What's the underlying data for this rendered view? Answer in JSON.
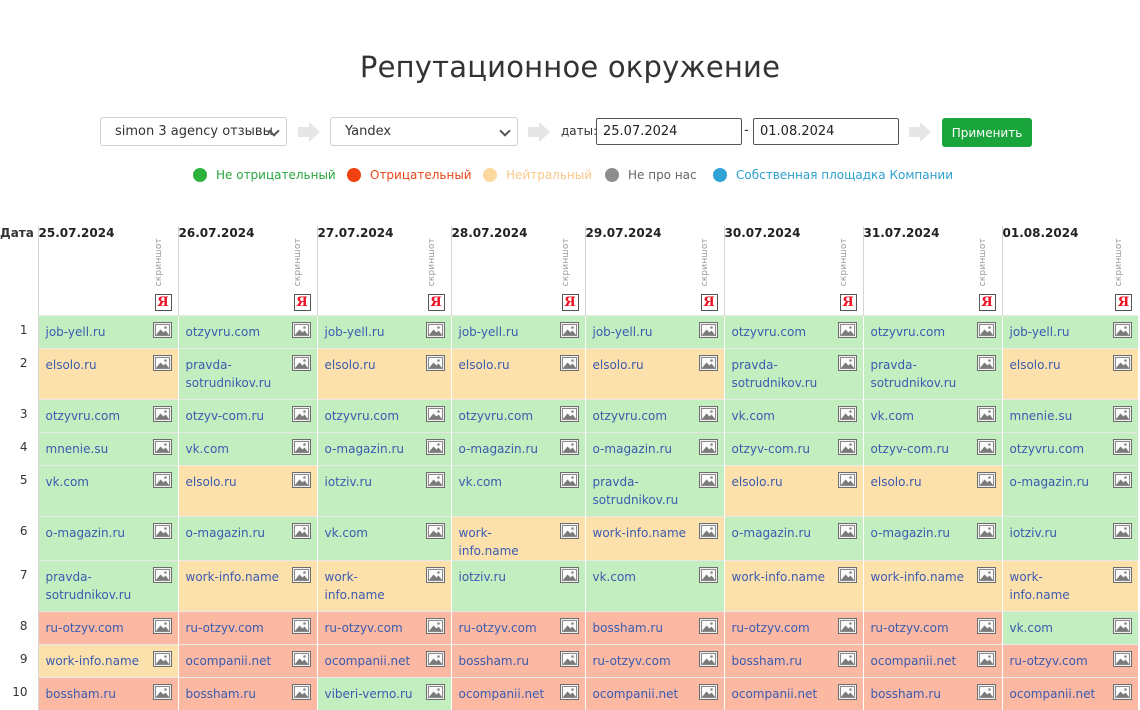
{
  "page": {
    "title": "Репутационное окружение"
  },
  "filters": {
    "project": "simon 3 agency отзывы",
    "engine": "Yandex",
    "dates_label": "даты:",
    "date_from": "25.07.2024",
    "date_sep": "-",
    "date_to": "01.08.2024",
    "apply_label": "Применить"
  },
  "legend": [
    {
      "label": "Не отрицательный",
      "color": "#2db33b",
      "text_color": "#2aa640"
    },
    {
      "label": "Отрицательный",
      "color": "#f24111",
      "text_color": "#e8471a"
    },
    {
      "label": "Нейтральный",
      "color": "#fcd89f",
      "text_color": "#f8c98a"
    },
    {
      "label": "Не про нас",
      "color": "#8e8e8e",
      "text_color": "#666666"
    },
    {
      "label": "Собственная площадка Компании",
      "color": "#2ea4d6",
      "text_color": "#2e9fd0"
    }
  ],
  "table": {
    "index_header": "Дата",
    "screenshot_label": "скриншот",
    "engine_badge": "Я",
    "dates": [
      "25.07.2024",
      "26.07.2024",
      "27.07.2024",
      "28.07.2024",
      "29.07.2024",
      "30.07.2024",
      "31.07.2024",
      "01.08.2024"
    ],
    "rows": [
      {
        "n": "1",
        "cells": [
          [
            "job-yell.ru",
            "g"
          ],
          [
            "otzyvru.com",
            "g"
          ],
          [
            "job-yell.ru",
            "g"
          ],
          [
            "job-yell.ru",
            "g"
          ],
          [
            "job-yell.ru",
            "g"
          ],
          [
            "otzyvru.com",
            "g"
          ],
          [
            "otzyvru.com",
            "g"
          ],
          [
            "job-yell.ru",
            "g"
          ]
        ]
      },
      {
        "n": "2",
        "cells": [
          [
            "elsolo.ru",
            "o"
          ],
          [
            "pravda-sotrudnikov.ru",
            "g"
          ],
          [
            "elsolo.ru",
            "o"
          ],
          [
            "elsolo.ru",
            "o"
          ],
          [
            "elsolo.ru",
            "o"
          ],
          [
            "pravda-sotrudnikov.ru",
            "g"
          ],
          [
            "pravda-sotrudnikov.ru",
            "g"
          ],
          [
            "elsolo.ru",
            "o"
          ]
        ]
      },
      {
        "n": "3",
        "cells": [
          [
            "otzyvru.com",
            "g"
          ],
          [
            "otzyv-com.ru",
            "g"
          ],
          [
            "otzyvru.com",
            "g"
          ],
          [
            "otzyvru.com",
            "g"
          ],
          [
            "otzyvru.com",
            "g"
          ],
          [
            "vk.com",
            "g"
          ],
          [
            "vk.com",
            "g"
          ],
          [
            "mnenie.su",
            "g"
          ]
        ]
      },
      {
        "n": "4",
        "cells": [
          [
            "mnenie.su",
            "g"
          ],
          [
            "vk.com",
            "g"
          ],
          [
            "o-magazin.ru",
            "g"
          ],
          [
            "o-magazin.ru",
            "g"
          ],
          [
            "o-magazin.ru",
            "g"
          ],
          [
            "otzyv-com.ru",
            "g"
          ],
          [
            "otzyv-com.ru",
            "g"
          ],
          [
            "otzyvru.com",
            "g"
          ]
        ]
      },
      {
        "n": "5",
        "cells": [
          [
            "vk.com",
            "g"
          ],
          [
            "elsolo.ru",
            "o"
          ],
          [
            "iotziv.ru",
            "g"
          ],
          [
            "vk.com",
            "g"
          ],
          [
            "pravda-sotrudnikov.ru",
            "g"
          ],
          [
            "elsolo.ru",
            "o"
          ],
          [
            "elsolo.ru",
            "o"
          ],
          [
            "o-magazin.ru",
            "g"
          ]
        ]
      },
      {
        "n": "6",
        "cells": [
          [
            "o-magazin.ru",
            "g"
          ],
          [
            "o-magazin.ru",
            "g"
          ],
          [
            "vk.com",
            "g"
          ],
          [
            "work-info.name",
            "o"
          ],
          [
            "work-info.name",
            "o"
          ],
          [
            "o-magazin.ru",
            "g"
          ],
          [
            "o-magazin.ru",
            "g"
          ],
          [
            "iotziv.ru",
            "g"
          ]
        ]
      },
      {
        "n": "7",
        "cells": [
          [
            "pravda-sotrudnikov.ru",
            "g"
          ],
          [
            "work-info.name",
            "o"
          ],
          [
            "work-info.name",
            "o"
          ],
          [
            "iotziv.ru",
            "g"
          ],
          [
            "vk.com",
            "g"
          ],
          [
            "work-info.name",
            "o"
          ],
          [
            "work-info.name",
            "o"
          ],
          [
            "work-info.name",
            "o"
          ]
        ]
      },
      {
        "n": "8",
        "cells": [
          [
            "ru-otzyv.com",
            "r"
          ],
          [
            "ru-otzyv.com",
            "r"
          ],
          [
            "ru-otzyv.com",
            "r"
          ],
          [
            "ru-otzyv.com",
            "r"
          ],
          [
            "bossham.ru",
            "r"
          ],
          [
            "ru-otzyv.com",
            "r"
          ],
          [
            "ru-otzyv.com",
            "r"
          ],
          [
            "vk.com",
            "g"
          ]
        ]
      },
      {
        "n": "9",
        "cells": [
          [
            "work-info.name",
            "o"
          ],
          [
            "ocompanii.net",
            "r"
          ],
          [
            "ocompanii.net",
            "r"
          ],
          [
            "bossham.ru",
            "r"
          ],
          [
            "ru-otzyv.com",
            "r"
          ],
          [
            "bossham.ru",
            "r"
          ],
          [
            "ocompanii.net",
            "r"
          ],
          [
            "ru-otzyv.com",
            "r"
          ]
        ]
      },
      {
        "n": "10",
        "cells": [
          [
            "bossham.ru",
            "r"
          ],
          [
            "bossham.ru",
            "r"
          ],
          [
            "viberi-verno.ru",
            "g"
          ],
          [
            "ocompanii.net",
            "r"
          ],
          [
            "ocompanii.net",
            "r"
          ],
          [
            "ocompanii.net",
            "r"
          ],
          [
            "bossham.ru",
            "r"
          ],
          [
            "ocompanii.net",
            "r"
          ]
        ]
      }
    ]
  }
}
